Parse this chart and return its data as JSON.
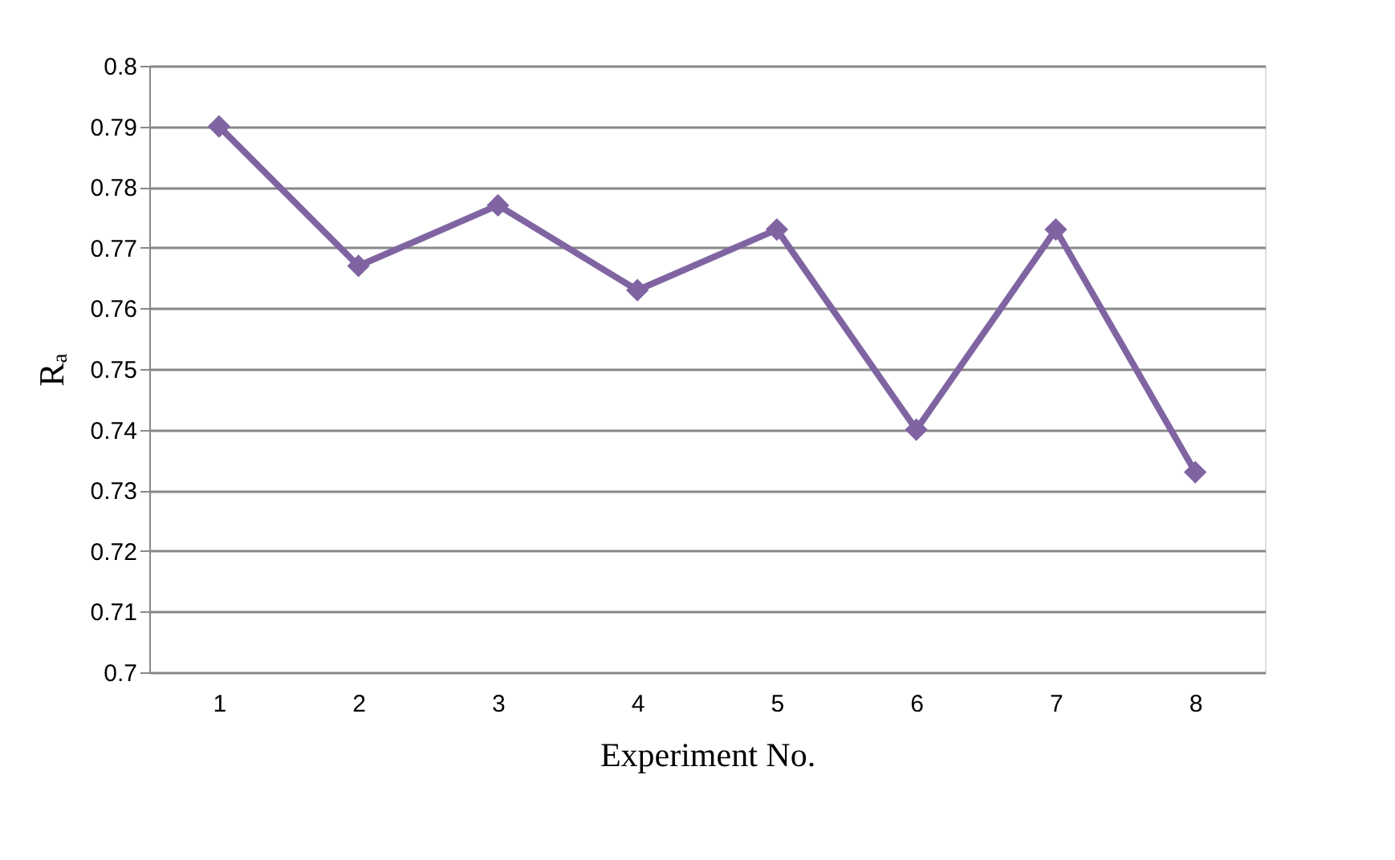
{
  "chart_data": {
    "type": "line",
    "xlabel": "Experiment No.",
    "ylabel": "Rₐ",
    "categories": [
      "1",
      "2",
      "3",
      "4",
      "5",
      "6",
      "7",
      "8"
    ],
    "series": [
      {
        "color": "#8064a2",
        "values": [
          0.79,
          0.767,
          0.777,
          0.763,
          0.773,
          0.74,
          0.773,
          0.733
        ]
      }
    ],
    "ylim": [
      0.7,
      0.8
    ],
    "yticks": [
      0.7,
      0.71,
      0.72,
      0.73,
      0.74,
      0.75,
      0.76,
      0.77,
      0.78,
      0.79,
      0.8
    ],
    "grid": "y",
    "marker": "diamond",
    "line_style": "solid"
  }
}
